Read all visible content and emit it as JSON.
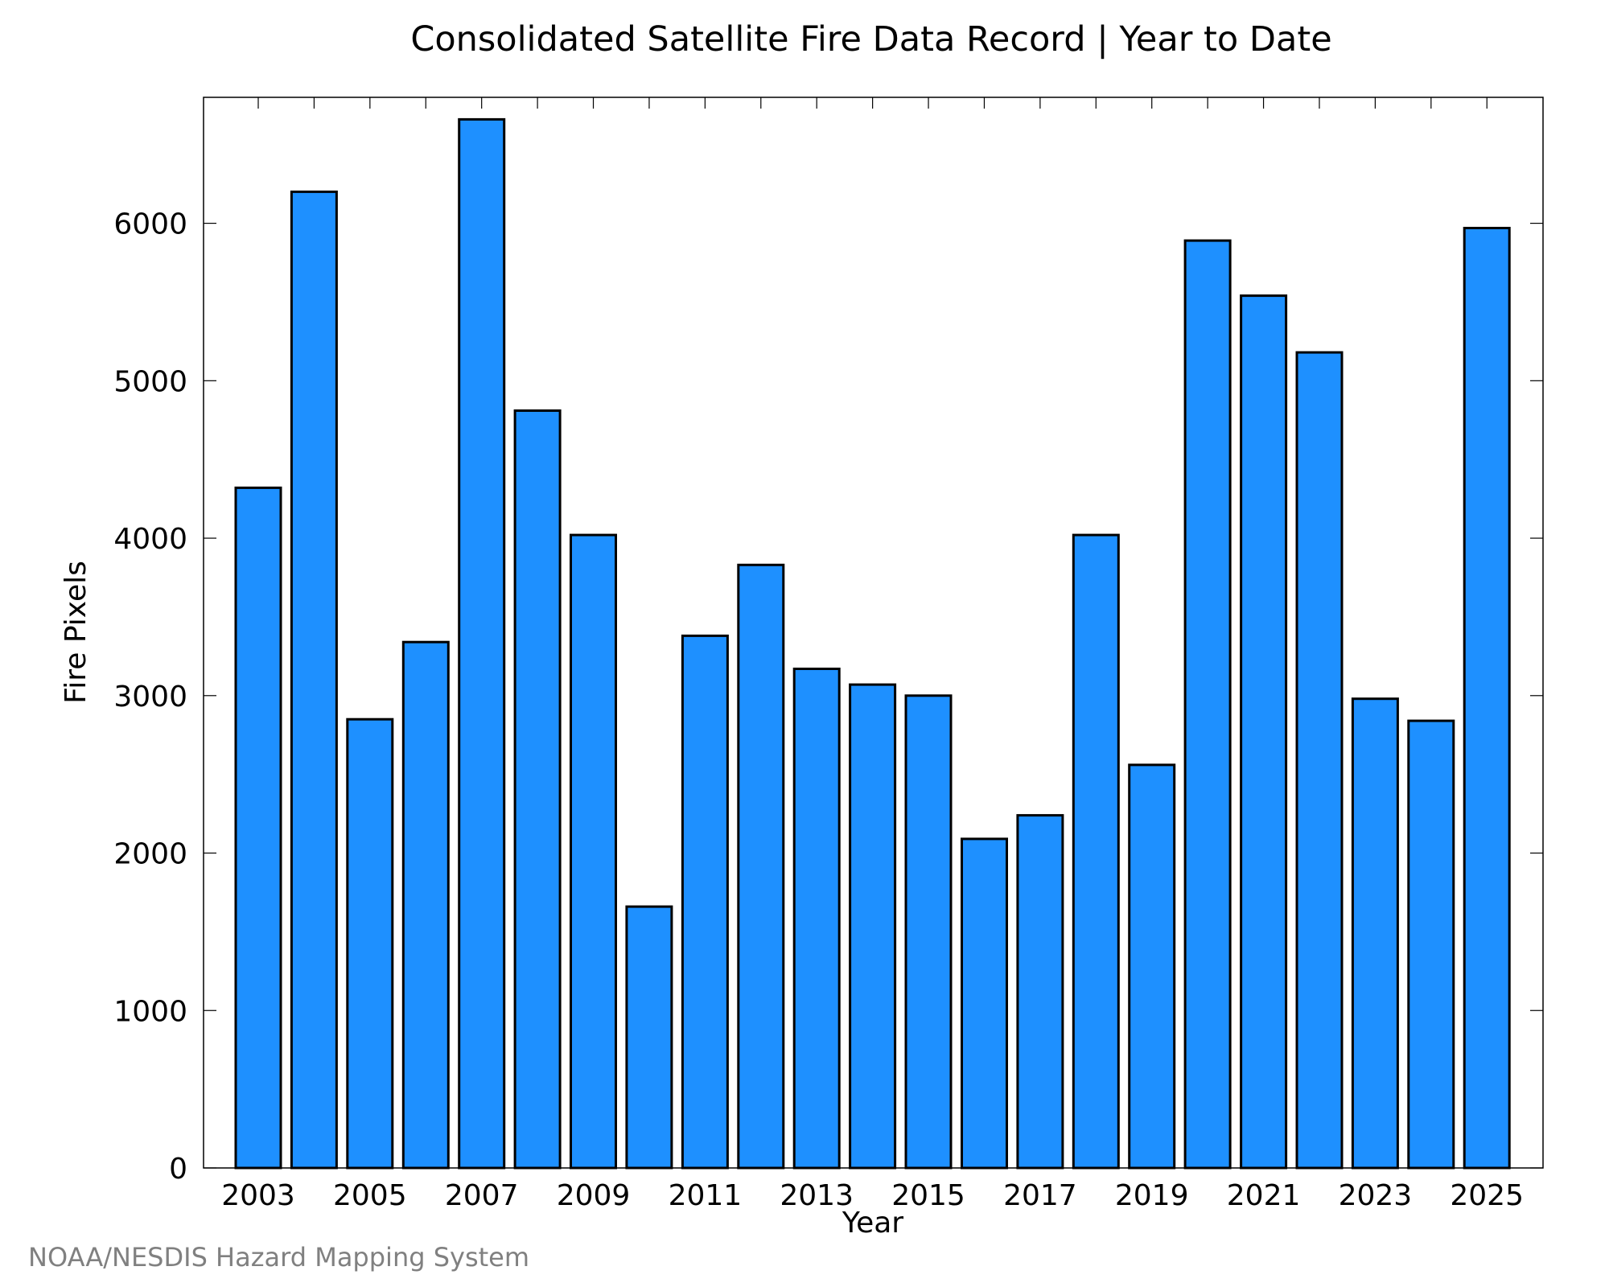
{
  "chart_data": {
    "type": "bar",
    "title": "Consolidated Satellite Fire Data Record | Year to Date",
    "xlabel": "Year",
    "ylabel": "Fire Pixels",
    "categories": [
      "2003",
      "2004",
      "2005",
      "2006",
      "2007",
      "2008",
      "2009",
      "2010",
      "2011",
      "2012",
      "2013",
      "2014",
      "2015",
      "2016",
      "2017",
      "2018",
      "2019",
      "2020",
      "2021",
      "2022",
      "2023",
      "2024",
      "2025"
    ],
    "values": [
      4320,
      6200,
      2850,
      3340,
      6660,
      4810,
      4020,
      1660,
      3380,
      3830,
      3170,
      3070,
      3000,
      2090,
      2240,
      4020,
      2560,
      5890,
      5540,
      5180,
      2980,
      2840,
      5970
    ],
    "x_tick_labels": [
      "2003",
      "2005",
      "2007",
      "2009",
      "2011",
      "2013",
      "2015",
      "2017",
      "2019",
      "2021",
      "2023",
      "2025"
    ],
    "y_tick_labels": [
      "0",
      "1000",
      "2000",
      "3000",
      "4000",
      "5000",
      "6000"
    ],
    "ylim": [
      0,
      6800
    ],
    "grid": false,
    "bar_color": "#1e90ff"
  },
  "credit": "NOAA/NESDIS Hazard Mapping System"
}
